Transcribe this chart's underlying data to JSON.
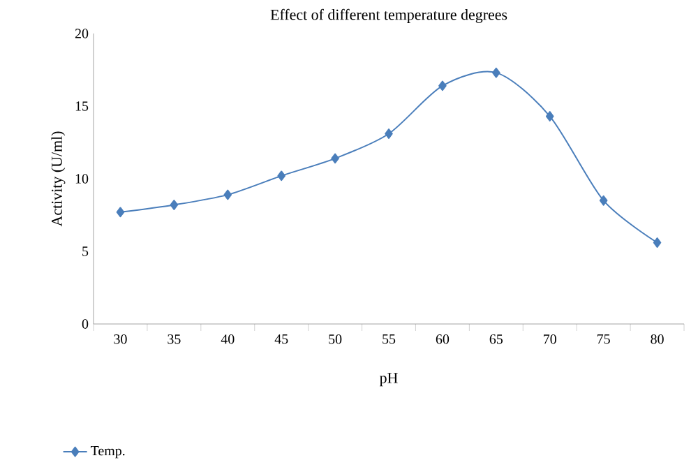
{
  "chart_data": {
    "type": "line",
    "title": "Effect of different temperature degrees",
    "xlabel": "pH",
    "ylabel": "Activity (U/ml)",
    "categories": [
      "30",
      "35",
      "40",
      "45",
      "50",
      "55",
      "60",
      "65",
      "70",
      "75",
      "80"
    ],
    "series": [
      {
        "name": "Temp.",
        "color": "#4a7ebb",
        "values": [
          7.7,
          8.2,
          8.9,
          10.2,
          11.4,
          13.1,
          16.4,
          17.3,
          14.3,
          8.5,
          5.6
        ]
      }
    ],
    "ylim": [
      0,
      20
    ],
    "yticks": [
      0,
      5,
      10,
      15,
      20
    ],
    "legend": "bottom left",
    "marker": "diamond"
  }
}
